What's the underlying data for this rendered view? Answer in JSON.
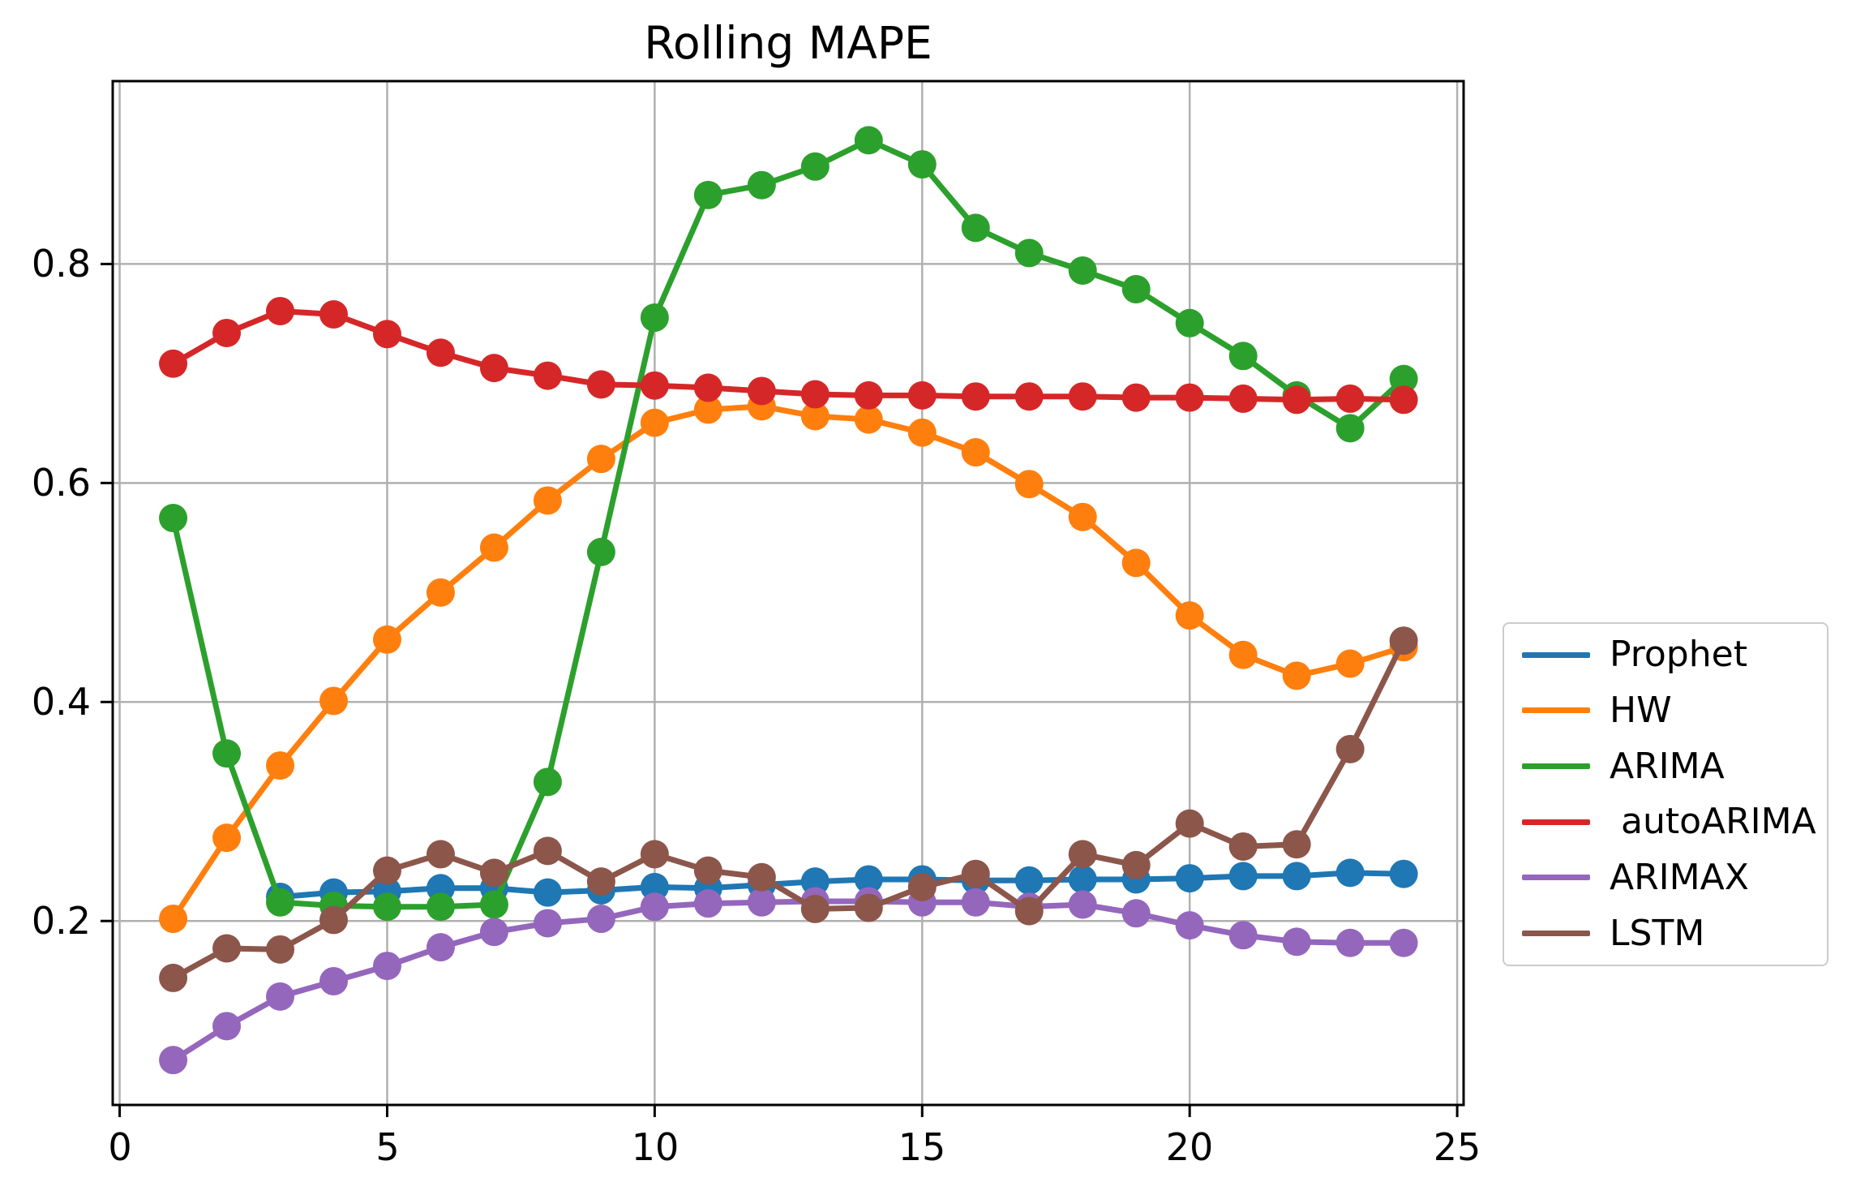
{
  "title": "Rolling MAPE",
  "axes": {
    "xticks": [
      "0",
      "5",
      "10",
      "15",
      "20",
      "25"
    ],
    "yticks": [
      "0.2",
      "0.4",
      "0.6",
      "0.8"
    ]
  },
  "chart_data": {
    "type": "line",
    "title": "Rolling MAPE",
    "xlabel": "",
    "ylabel": "",
    "xlim": [
      -0.13,
      25.12
    ],
    "ylim": [
      0.032,
      0.967
    ],
    "xtick_values": [
      0,
      5,
      10,
      15,
      20,
      25
    ],
    "ytick_values": [
      0.2,
      0.4,
      0.6,
      0.8
    ],
    "grid": true,
    "legend_position": "outside-right",
    "marker": "o",
    "series": [
      {
        "name": "Prophet",
        "color": "#1f77b4",
        "x": [
          3,
          4,
          5,
          6,
          7,
          8,
          9,
          10,
          11,
          12,
          13,
          14,
          15,
          16,
          17,
          18,
          19,
          20,
          21,
          22,
          23,
          24
        ],
        "values": [
          0.222,
          0.226,
          0.227,
          0.23,
          0.23,
          0.226,
          0.228,
          0.231,
          0.23,
          0.233,
          0.236,
          0.238,
          0.238,
          0.237,
          0.237,
          0.238,
          0.238,
          0.239,
          0.241,
          0.241,
          0.244,
          0.243
        ]
      },
      {
        "name": "HW",
        "color": "#ff7f0e",
        "x": [
          1,
          2,
          3,
          4,
          5,
          6,
          7,
          8,
          9,
          10,
          11,
          12,
          13,
          14,
          15,
          16,
          17,
          18,
          19,
          20,
          21,
          22,
          23,
          24
        ],
        "values": [
          0.202,
          0.276,
          0.342,
          0.401,
          0.457,
          0.5,
          0.541,
          0.584,
          0.622,
          0.655,
          0.667,
          0.67,
          0.661,
          0.658,
          0.646,
          0.628,
          0.599,
          0.569,
          0.527,
          0.479,
          0.443,
          0.424,
          0.435,
          0.45
        ]
      },
      {
        "name": "ARIMA",
        "color": "#2ca02c",
        "x": [
          1,
          2,
          3,
          4,
          5,
          6,
          7,
          8,
          9,
          10,
          11,
          12,
          13,
          14,
          15,
          16,
          17,
          18,
          19,
          20,
          21,
          22,
          23,
          24
        ],
        "values": [
          0.568,
          0.353,
          0.217,
          0.214,
          0.213,
          0.213,
          0.215,
          0.327,
          0.537,
          0.751,
          0.863,
          0.872,
          0.889,
          0.913,
          0.891,
          0.833,
          0.81,
          0.794,
          0.777,
          0.746,
          0.716,
          0.68,
          0.65,
          0.695
        ]
      },
      {
        "name": " autoARIMA",
        "color": "#d62728",
        "x": [
          1,
          2,
          3,
          4,
          5,
          6,
          7,
          8,
          9,
          10,
          11,
          12,
          13,
          14,
          15,
          16,
          17,
          18,
          19,
          20,
          21,
          22,
          23,
          24
        ],
        "values": [
          0.709,
          0.737,
          0.757,
          0.754,
          0.736,
          0.719,
          0.705,
          0.698,
          0.69,
          0.689,
          0.687,
          0.684,
          0.681,
          0.68,
          0.68,
          0.679,
          0.679,
          0.679,
          0.678,
          0.678,
          0.677,
          0.676,
          0.677,
          0.676
        ]
      },
      {
        "name": "ARIMAX",
        "color": "#9467bd",
        "x": [
          1,
          2,
          3,
          4,
          5,
          6,
          7,
          8,
          9,
          10,
          11,
          12,
          13,
          14,
          15,
          16,
          17,
          18,
          19,
          20,
          21,
          22,
          23,
          24
        ],
        "values": [
          0.073,
          0.104,
          0.131,
          0.145,
          0.159,
          0.176,
          0.19,
          0.198,
          0.202,
          0.213,
          0.216,
          0.217,
          0.218,
          0.218,
          0.217,
          0.217,
          0.213,
          0.215,
          0.207,
          0.196,
          0.187,
          0.181,
          0.18,
          0.18
        ]
      },
      {
        "name": "LSTM",
        "color": "#8c564b",
        "x": [
          1,
          2,
          3,
          4,
          5,
          6,
          7,
          8,
          9,
          10,
          11,
          12,
          13,
          14,
          15,
          16,
          17,
          18,
          19,
          20,
          21,
          22,
          23,
          24
        ],
        "values": [
          0.148,
          0.175,
          0.174,
          0.201,
          0.246,
          0.261,
          0.244,
          0.264,
          0.236,
          0.261,
          0.246,
          0.24,
          0.211,
          0.212,
          0.231,
          0.243,
          0.209,
          0.261,
          0.251,
          0.289,
          0.268,
          0.27,
          0.357,
          0.456
        ]
      }
    ]
  }
}
